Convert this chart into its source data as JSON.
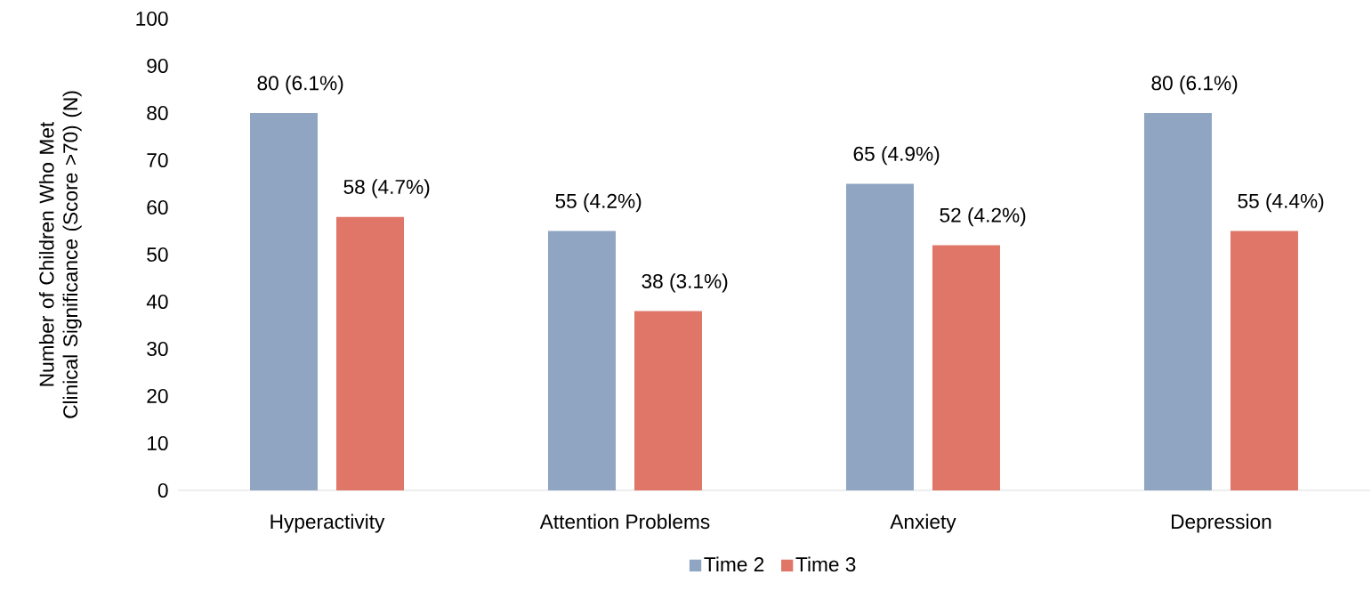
{
  "chart_data": {
    "type": "bar",
    "categories": [
      "Hyperactivity",
      "Attention Problems",
      "Anxiety",
      "Depression"
    ],
    "series": [
      {
        "name": "Time 2",
        "color": "#8fa5c2",
        "values": [
          80,
          55,
          65,
          80
        ],
        "value_labels": [
          "80 (6.1%)",
          "55 (4.2%)",
          "65 (4.9%)",
          "80 (6.1%)"
        ]
      },
      {
        "name": "Time 3",
        "color": "#e07668",
        "values": [
          58,
          38,
          52,
          55
        ],
        "value_labels": [
          "58 (4.7%)",
          "38 (3.1%)",
          "52 (4.2%)",
          "55 (4.4%)"
        ]
      }
    ],
    "ylabel": "Number of Children Who Met Clinical Significance (Score >70) (N)",
    "ylim": [
      0,
      100
    ],
    "yticks": [
      0,
      10,
      20,
      30,
      40,
      50,
      60,
      70,
      80,
      90,
      100
    ],
    "legend": "bottom"
  }
}
